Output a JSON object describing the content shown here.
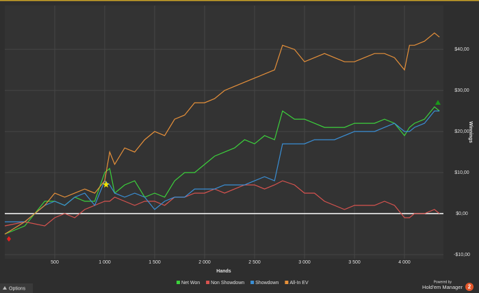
{
  "chart_data": {
    "type": "line",
    "xlabel": "Hands",
    "ylabel": "Winnings",
    "x": [
      0,
      200,
      400,
      500,
      600,
      700,
      800,
      900,
      1000,
      1050,
      1100,
      1200,
      1300,
      1400,
      1500,
      1600,
      1700,
      1800,
      1900,
      2000,
      2100,
      2200,
      2300,
      2400,
      2500,
      2600,
      2700,
      2780,
      2900,
      3000,
      3100,
      3200,
      3300,
      3400,
      3500,
      3600,
      3700,
      3800,
      3900,
      4000,
      4050,
      4100,
      4200,
      4300,
      4350
    ],
    "series": [
      {
        "name": "Net Won",
        "color": "#3cd23c",
        "values": [
          -5,
          -3,
          3,
          3,
          2,
          4,
          3,
          3,
          10,
          11,
          5,
          7,
          8,
          4,
          5,
          4,
          8,
          10,
          10,
          12,
          14,
          15,
          16,
          18,
          17,
          19,
          18,
          25,
          23,
          23,
          22,
          21,
          21,
          21,
          22,
          22,
          22,
          23,
          22,
          19,
          21,
          22,
          23,
          26,
          25
        ]
      },
      {
        "name": "Non Showdown",
        "color": "#d9534f",
        "values": [
          -3,
          -2,
          -3,
          -1,
          0,
          -1,
          1,
          2,
          3,
          3,
          4,
          3,
          2,
          3,
          3,
          2,
          4,
          4,
          5,
          5,
          6,
          5,
          6,
          7,
          7,
          6,
          7,
          8,
          7,
          5,
          5,
          3,
          2,
          1,
          2,
          2,
          2,
          3,
          2,
          -1,
          -1,
          0,
          0,
          1,
          0
        ]
      },
      {
        "name": "Showdown",
        "color": "#3a8fd6",
        "values": [
          -2,
          -2,
          2,
          3,
          2,
          4,
          5,
          2,
          8,
          7,
          5,
          4,
          5,
          4,
          1,
          3,
          4,
          4,
          6,
          6,
          6,
          7,
          7,
          7,
          8,
          9,
          8,
          17,
          17,
          17,
          18,
          18,
          18,
          19,
          20,
          20,
          20,
          21,
          22,
          20,
          20,
          21,
          22,
          25,
          25
        ]
      },
      {
        "name": "All-In EV",
        "color": "#e8913a",
        "values": [
          -5,
          -2,
          2,
          5,
          4,
          5,
          6,
          5,
          8,
          15,
          12,
          16,
          15,
          18,
          20,
          19,
          23,
          24,
          27,
          27,
          28,
          30,
          31,
          32,
          33,
          34,
          35,
          41,
          40,
          37,
          38,
          39,
          38,
          37,
          37,
          38,
          39,
          39,
          38,
          35,
          41,
          41,
          42,
          44,
          43
        ]
      }
    ],
    "xlim": [
      0,
      4390
    ],
    "ylim": [
      -11,
      50.7
    ],
    "xticks": [
      500,
      {
        "value": 1000,
        "label": "1 000"
      },
      {
        "value": 1500,
        "label": "1 500"
      },
      {
        "value": 2000,
        "label": "2 000"
      },
      {
        "value": 2500,
        "label": "2 500"
      },
      {
        "value": 3000,
        "label": "3 000"
      },
      {
        "value": 3500,
        "label": "3 500"
      },
      {
        "value": 4000,
        "label": "4 000"
      }
    ],
    "yticks": [
      {
        "value": -10,
        "label": "-$10,00"
      },
      {
        "value": 0,
        "label": "$0,00"
      },
      {
        "value": 10,
        "label": "$10,00"
      },
      {
        "value": 20,
        "label": "$20,00"
      },
      {
        "value": 30,
        "label": "$30,00"
      },
      {
        "value": 40,
        "label": "$40,00"
      }
    ],
    "grid": true
  },
  "footer": {
    "options": "Options",
    "powered_by": "Powered by",
    "brand": "Hold'em Manager",
    "badge": "2"
  }
}
